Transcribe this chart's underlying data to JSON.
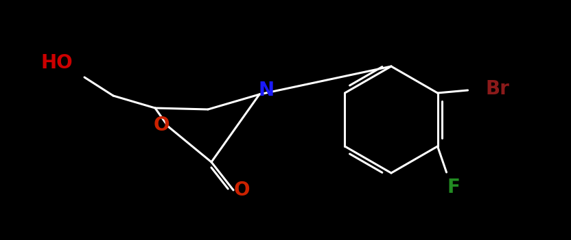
{
  "background_color": "#000000",
  "bond_color": "#ffffff",
  "figsize": [
    8.32,
    3.51
  ],
  "dpi": 100,
  "atoms": {
    "HO": {
      "color": "#cc0000",
      "fontsize": 20,
      "fontweight": "bold"
    },
    "N": {
      "color": "#1a1aff",
      "fontsize": 20,
      "fontweight": "bold"
    },
    "O_ring": {
      "color": "#cc2200",
      "fontsize": 20,
      "fontweight": "bold"
    },
    "O_carbonyl": {
      "color": "#cc2200",
      "fontsize": 20,
      "fontweight": "bold"
    },
    "Br": {
      "color": "#8b1a1a",
      "fontsize": 20,
      "fontweight": "bold"
    },
    "F": {
      "color": "#228B22",
      "fontsize": 20,
      "fontweight": "bold"
    }
  }
}
